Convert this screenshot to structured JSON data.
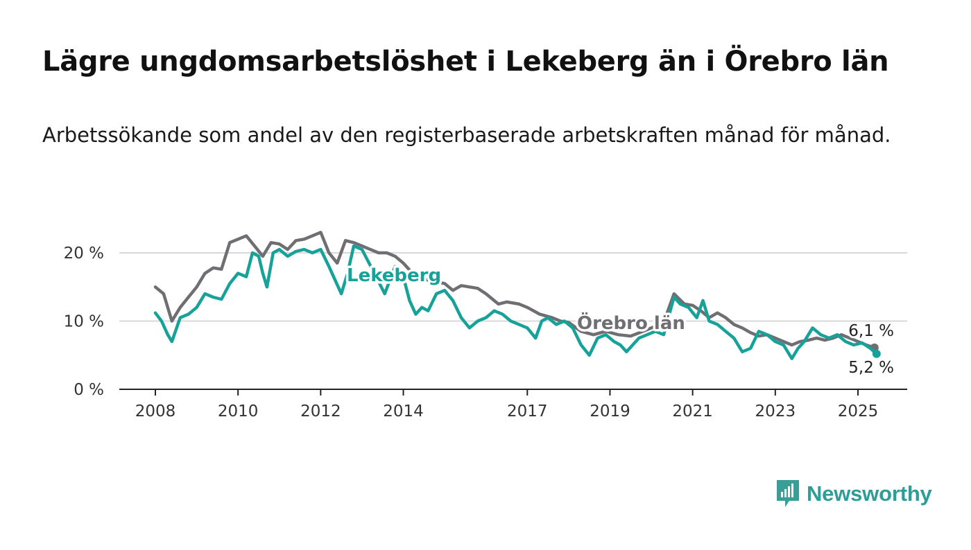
{
  "header": {
    "title": "Lägre ungdomsarbetslöshet i Lekeberg än i Örebro län",
    "subtitle": "Arbetssökande som andel av den registerbaserade arbetskraften månad för månad."
  },
  "logo": {
    "text": "Newsworthy",
    "icon": "bar-chart-bubble-icon",
    "color": "#3a9d96"
  },
  "chart_data": {
    "type": "line",
    "title": "Lägre ungdomsarbetslöshet i Lekeberg än i Örebro län",
    "subtitle": "Arbetssökande som andel av den registerbaserade arbetskraften månad för månad.",
    "xlabel": "",
    "ylabel": "",
    "xlim": [
      2008,
      2025.5
    ],
    "ylim": [
      0,
      20
    ],
    "x_ticks": [
      2008,
      2010,
      2012,
      2014,
      2017,
      2019,
      2021,
      2023,
      2025
    ],
    "x_tick_labels": [
      "2008",
      "2010",
      "2012",
      "2014",
      "2017",
      "2019",
      "2021",
      "2023",
      "2025"
    ],
    "y_ticks": [
      0,
      10,
      20
    ],
    "y_tick_labels": [
      "0 %",
      "10 %",
      "20 %"
    ],
    "grid": true,
    "legend": "direct labels on lines",
    "series": [
      {
        "name": "Örebro län",
        "color": "#6e6e73",
        "end_label": "6,1 %",
        "points": [
          [
            2008.0,
            15.0
          ],
          [
            2008.2,
            14.0
          ],
          [
            2008.4,
            10.0
          ],
          [
            2008.6,
            12.0
          ],
          [
            2008.8,
            13.5
          ],
          [
            2009.0,
            15.0
          ],
          [
            2009.2,
            17.0
          ],
          [
            2009.4,
            17.8
          ],
          [
            2009.6,
            17.6
          ],
          [
            2009.8,
            21.5
          ],
          [
            2010.0,
            22.0
          ],
          [
            2010.2,
            22.5
          ],
          [
            2010.4,
            21.0
          ],
          [
            2010.6,
            19.5
          ],
          [
            2010.8,
            21.5
          ],
          [
            2011.0,
            21.3
          ],
          [
            2011.2,
            20.5
          ],
          [
            2011.4,
            21.8
          ],
          [
            2011.6,
            22.0
          ],
          [
            2011.8,
            22.5
          ],
          [
            2012.0,
            23.0
          ],
          [
            2012.2,
            20.0
          ],
          [
            2012.4,
            18.5
          ],
          [
            2012.6,
            21.8
          ],
          [
            2012.8,
            21.5
          ],
          [
            2013.0,
            21.0
          ],
          [
            2013.2,
            20.5
          ],
          [
            2013.4,
            20.0
          ],
          [
            2013.6,
            20.0
          ],
          [
            2013.8,
            19.5
          ],
          [
            2014.0,
            18.5
          ],
          [
            2014.3,
            16.5
          ],
          [
            2014.6,
            16.0
          ],
          [
            2015.0,
            15.5
          ],
          [
            2015.2,
            14.5
          ],
          [
            2015.4,
            15.2
          ],
          [
            2015.8,
            14.8
          ],
          [
            2016.0,
            14.0
          ],
          [
            2016.3,
            12.5
          ],
          [
            2016.5,
            12.8
          ],
          [
            2016.8,
            12.5
          ],
          [
            2017.0,
            12.0
          ],
          [
            2017.3,
            11.0
          ],
          [
            2017.6,
            10.5
          ],
          [
            2017.8,
            10.0
          ],
          [
            2018.0,
            9.8
          ],
          [
            2018.3,
            8.5
          ],
          [
            2018.6,
            8.0
          ],
          [
            2018.9,
            8.5
          ],
          [
            2019.2,
            8.0
          ],
          [
            2019.5,
            7.8
          ],
          [
            2019.8,
            8.5
          ],
          [
            2020.0,
            9.0
          ],
          [
            2020.3,
            9.8
          ],
          [
            2020.55,
            14.0
          ],
          [
            2020.8,
            12.5
          ],
          [
            2021.0,
            12.3
          ],
          [
            2021.2,
            11.5
          ],
          [
            2021.4,
            10.5
          ],
          [
            2021.6,
            11.2
          ],
          [
            2021.8,
            10.5
          ],
          [
            2022.0,
            9.5
          ],
          [
            2022.2,
            9.0
          ],
          [
            2022.4,
            8.3
          ],
          [
            2022.6,
            7.8
          ],
          [
            2022.8,
            8.0
          ],
          [
            2023.0,
            7.5
          ],
          [
            2023.2,
            7.0
          ],
          [
            2023.4,
            6.5
          ],
          [
            2023.6,
            7.0
          ],
          [
            2023.8,
            7.2
          ],
          [
            2024.0,
            7.5
          ],
          [
            2024.2,
            7.2
          ],
          [
            2024.4,
            7.5
          ],
          [
            2024.6,
            8.0
          ],
          [
            2024.8,
            7.5
          ],
          [
            2025.0,
            7.0
          ],
          [
            2025.2,
            6.5
          ],
          [
            2025.4,
            6.1
          ]
        ]
      },
      {
        "name": "Lekeberg",
        "color": "#16a299",
        "end_label": "5,2 %",
        "points": [
          [
            2008.0,
            11.2
          ],
          [
            2008.15,
            10.0
          ],
          [
            2008.3,
            8.0
          ],
          [
            2008.4,
            7.0
          ],
          [
            2008.6,
            10.5
          ],
          [
            2008.8,
            11.0
          ],
          [
            2009.0,
            12.0
          ],
          [
            2009.2,
            14.0
          ],
          [
            2009.4,
            13.5
          ],
          [
            2009.6,
            13.2
          ],
          [
            2009.8,
            15.5
          ],
          [
            2010.0,
            17.0
          ],
          [
            2010.2,
            16.5
          ],
          [
            2010.35,
            20.0
          ],
          [
            2010.5,
            19.5
          ],
          [
            2010.6,
            17.0
          ],
          [
            2010.7,
            15.0
          ],
          [
            2010.85,
            20.0
          ],
          [
            2011.0,
            20.5
          ],
          [
            2011.2,
            19.5
          ],
          [
            2011.4,
            20.2
          ],
          [
            2011.6,
            20.5
          ],
          [
            2011.8,
            20.0
          ],
          [
            2012.0,
            20.5
          ],
          [
            2012.2,
            18.0
          ],
          [
            2012.35,
            16.0
          ],
          [
            2012.5,
            14.0
          ],
          [
            2012.65,
            17.0
          ],
          [
            2012.8,
            21.0
          ],
          [
            2013.0,
            20.5
          ],
          [
            2013.3,
            17.0
          ],
          [
            2013.55,
            14.0
          ],
          [
            2013.8,
            18.0
          ],
          [
            2014.0,
            16.5
          ],
          [
            2014.15,
            13.0
          ],
          [
            2014.3,
            11.0
          ],
          [
            2014.45,
            12.0
          ],
          [
            2014.6,
            11.5
          ],
          [
            2014.8,
            14.0
          ],
          [
            2015.0,
            14.5
          ],
          [
            2015.2,
            13.0
          ],
          [
            2015.4,
            10.5
          ],
          [
            2015.6,
            9.0
          ],
          [
            2015.8,
            10.0
          ],
          [
            2016.0,
            10.5
          ],
          [
            2016.2,
            11.5
          ],
          [
            2016.4,
            11.0
          ],
          [
            2016.6,
            10.0
          ],
          [
            2016.8,
            9.5
          ],
          [
            2017.0,
            9.0
          ],
          [
            2017.2,
            7.5
          ],
          [
            2017.35,
            10.0
          ],
          [
            2017.5,
            10.5
          ],
          [
            2017.7,
            9.5
          ],
          [
            2017.9,
            10.0
          ],
          [
            2018.1,
            9.0
          ],
          [
            2018.3,
            6.5
          ],
          [
            2018.5,
            5.0
          ],
          [
            2018.7,
            7.5
          ],
          [
            2018.9,
            8.0
          ],
          [
            2019.1,
            7.0
          ],
          [
            2019.25,
            6.5
          ],
          [
            2019.4,
            5.5
          ],
          [
            2019.55,
            6.5
          ],
          [
            2019.7,
            7.5
          ],
          [
            2019.9,
            8.0
          ],
          [
            2020.1,
            8.5
          ],
          [
            2020.3,
            8.0
          ],
          [
            2020.55,
            13.5
          ],
          [
            2020.7,
            12.5
          ],
          [
            2020.9,
            12.0
          ],
          [
            2021.1,
            10.5
          ],
          [
            2021.25,
            13.0
          ],
          [
            2021.4,
            10.0
          ],
          [
            2021.6,
            9.5
          ],
          [
            2021.8,
            8.5
          ],
          [
            2022.0,
            7.5
          ],
          [
            2022.2,
            5.5
          ],
          [
            2022.4,
            6.0
          ],
          [
            2022.6,
            8.5
          ],
          [
            2022.8,
            8.0
          ],
          [
            2023.0,
            7.0
          ],
          [
            2023.2,
            6.5
          ],
          [
            2023.3,
            5.5
          ],
          [
            2023.4,
            4.5
          ],
          [
            2023.55,
            6.0
          ],
          [
            2023.7,
            7.0
          ],
          [
            2023.9,
            9.0
          ],
          [
            2024.1,
            8.0
          ],
          [
            2024.3,
            7.5
          ],
          [
            2024.5,
            8.0
          ],
          [
            2024.7,
            7.0
          ],
          [
            2024.9,
            6.5
          ],
          [
            2025.1,
            6.8
          ],
          [
            2025.3,
            6.0
          ],
          [
            2025.45,
            5.2
          ]
        ]
      }
    ]
  }
}
